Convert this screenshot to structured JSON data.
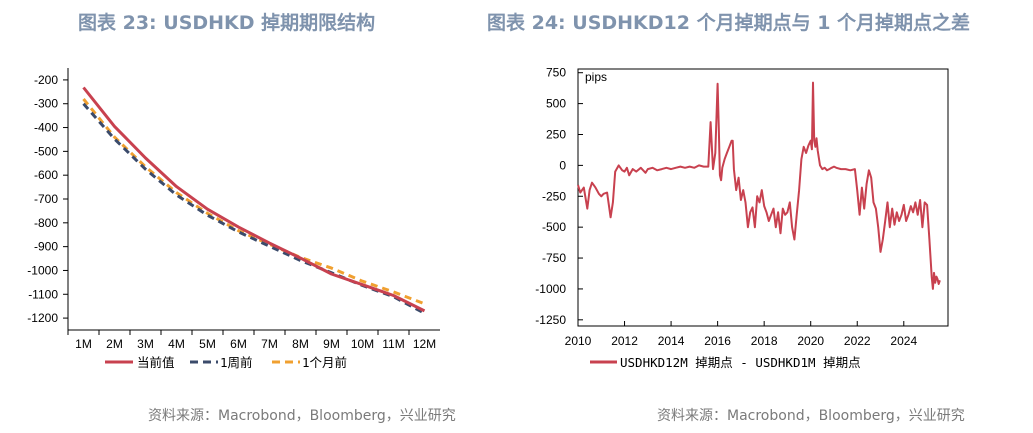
{
  "left_title": "图表 23: USDHKD 掉期期限结构",
  "right_title": "图表 24: USDHKD12 个月掉期点与 1 个月掉期点之差",
  "left_source": "资料来源：Macrobond，Bloomberg，兴业研究",
  "right_source": "资料来源：Macrobond，Bloomberg，兴业研究",
  "colors": {
    "current": "#c8414f",
    "week": "#3b4b6b",
    "month": "#f0a030"
  },
  "chart_data": [
    {
      "type": "line",
      "categories": [
        "1M",
        "2M",
        "3M",
        "4M",
        "5M",
        "6M",
        "7M",
        "8M",
        "9M",
        "10M",
        "11M",
        "12M"
      ],
      "ylim": [
        -1250,
        -150
      ],
      "yticks": [
        -200,
        -300,
        -400,
        -500,
        -600,
        -700,
        -800,
        -900,
        -1000,
        -1100,
        -1200
      ],
      "ytick_labels": [
        "-200",
        "-300",
        "-400",
        "-500",
        "-600",
        "-700",
        "-800",
        "-900",
        "-1000",
        "-1100",
        "-1200"
      ],
      "series": [
        {
          "name": "当前值",
          "values": [
            -232,
            -395,
            -528,
            -648,
            -743,
            -818,
            -885,
            -948,
            -1015,
            -1060,
            -1105,
            -1170
          ]
        },
        {
          "name": "1周前",
          "values": [
            -300,
            -448,
            -575,
            -683,
            -768,
            -838,
            -898,
            -958,
            -1010,
            -1063,
            -1110,
            -1180
          ]
        },
        {
          "name": "1个月前",
          "values": [
            -280,
            -440,
            -565,
            -673,
            -760,
            -833,
            -890,
            -945,
            -990,
            -1045,
            -1090,
            -1140
          ]
        }
      ]
    },
    {
      "type": "line",
      "unit_label": "pips",
      "xlim": [
        2010,
        2025.9
      ],
      "ylim": [
        -1300,
        780
      ],
      "xticks": [
        2010,
        2012,
        2014,
        2016,
        2018,
        2020,
        2022,
        2024
      ],
      "xtick_labels": [
        "2010",
        "2012",
        "2014",
        "2016",
        "2018",
        "2020",
        "2022",
        "2024"
      ],
      "yticks": [
        750,
        500,
        250,
        0,
        -250,
        -500,
        -750,
        -1000,
        -1250
      ],
      "ytick_labels": [
        "750",
        "500",
        "250",
        "0",
        "-250",
        "-500",
        "-750",
        "-1000",
        "-1250"
      ],
      "series": [
        {
          "name": "USDHKD12M 掉期点 - USDHKD1M 掉期点",
          "x": [
            2010.0,
            2010.1,
            2010.25,
            2010.4,
            2010.5,
            2010.6,
            2010.75,
            2010.9,
            2011.0,
            2011.1,
            2011.25,
            2011.4,
            2011.5,
            2011.6,
            2011.75,
            2011.9,
            2012.0,
            2012.1,
            2012.2,
            2012.35,
            2012.5,
            2012.7,
            2012.9,
            2013.0,
            2013.2,
            2013.4,
            2013.6,
            2013.8,
            2014.0,
            2014.2,
            2014.4,
            2014.6,
            2014.8,
            2015.0,
            2015.2,
            2015.4,
            2015.6,
            2015.7,
            2015.8,
            2015.9,
            2016.0,
            2016.05,
            2016.1,
            2016.15,
            2016.2,
            2016.3,
            2016.4,
            2016.5,
            2016.6,
            2016.65,
            2016.7,
            2016.8,
            2016.9,
            2017.0,
            2017.1,
            2017.2,
            2017.3,
            2017.4,
            2017.5,
            2017.6,
            2017.7,
            2017.8,
            2017.9,
            2018.0,
            2018.1,
            2018.2,
            2018.3,
            2018.4,
            2018.5,
            2018.6,
            2018.7,
            2018.8,
            2018.9,
            2019.0,
            2019.1,
            2019.2,
            2019.3,
            2019.4,
            2019.5,
            2019.6,
            2019.7,
            2019.8,
            2019.9,
            2020.0,
            2020.05,
            2020.1,
            2020.15,
            2020.2,
            2020.25,
            2020.3,
            2020.4,
            2020.5,
            2020.6,
            2020.7,
            2020.8,
            2020.9,
            2021.0,
            2021.1,
            2021.3,
            2021.5,
            2021.7,
            2021.9,
            2022.0,
            2022.1,
            2022.2,
            2022.3,
            2022.4,
            2022.5,
            2022.6,
            2022.7,
            2022.8,
            2022.9,
            2023.0,
            2023.1,
            2023.2,
            2023.3,
            2023.4,
            2023.5,
            2023.6,
            2023.7,
            2023.8,
            2023.9,
            2024.0,
            2024.1,
            2024.2,
            2024.3,
            2024.4,
            2024.5,
            2024.6,
            2024.7,
            2024.8,
            2024.9,
            2025.0,
            2025.1,
            2025.2,
            2025.25,
            2025.3,
            2025.35,
            2025.4,
            2025.45,
            2025.5,
            2025.55
          ],
          "values": [
            -160,
            -220,
            -180,
            -350,
            -200,
            -140,
            -180,
            -230,
            -250,
            -230,
            -220,
            -420,
            -300,
            -50,
            0,
            -40,
            -50,
            -20,
            -80,
            -30,
            -50,
            -20,
            -60,
            -30,
            -20,
            -40,
            -30,
            -20,
            -30,
            -20,
            -10,
            -20,
            -10,
            -20,
            0,
            -10,
            -10,
            350,
            -30,
            100,
            660,
            300,
            -80,
            -120,
            -20,
            50,
            100,
            150,
            200,
            200,
            -30,
            -200,
            -100,
            -280,
            -200,
            -300,
            -500,
            -380,
            -340,
            -500,
            -250,
            -300,
            -200,
            -330,
            -380,
            -450,
            -400,
            -350,
            -500,
            -380,
            -550,
            -350,
            -400,
            -380,
            -300,
            -500,
            -600,
            -400,
            -200,
            50,
            150,
            100,
            160,
            200,
            130,
            670,
            200,
            150,
            220,
            120,
            0,
            -30,
            -20,
            -40,
            -30,
            -20,
            -10,
            -20,
            -30,
            -30,
            -40,
            -30,
            -200,
            -400,
            -180,
            -350,
            -150,
            -40,
            -100,
            -300,
            -350,
            -500,
            -700,
            -600,
            -450,
            -300,
            -500,
            -350,
            -480,
            -380,
            -450,
            -400,
            -320,
            -450,
            -400,
            -330,
            -380,
            -300,
            -400,
            -280,
            -500,
            -300,
            -320,
            -600,
            -900,
            -1000,
            -870,
            -950,
            -900,
            -920,
            -960,
            -930
          ]
        }
      ]
    }
  ]
}
